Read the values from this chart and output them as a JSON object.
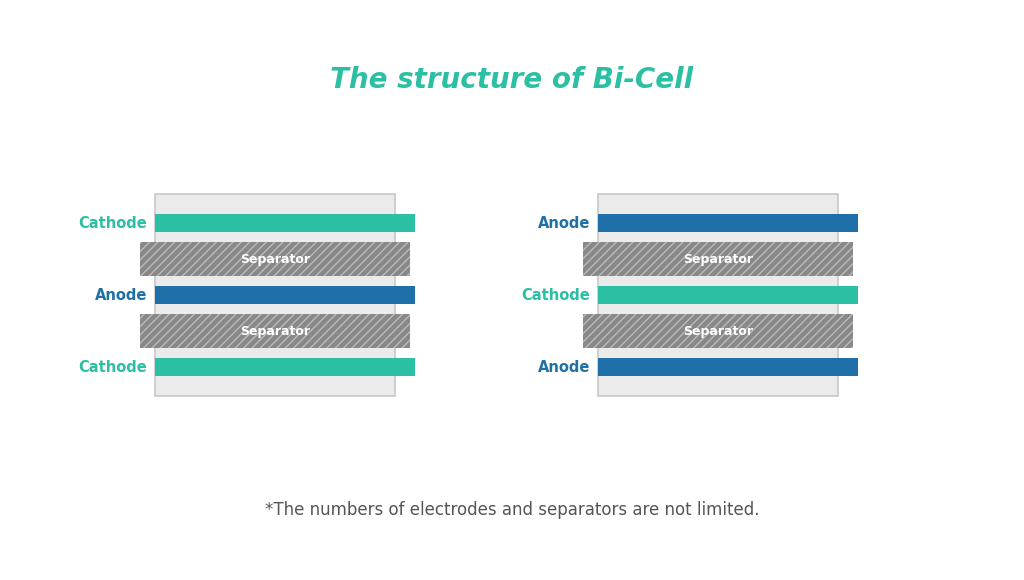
{
  "title": "The structure of Bi-Cell",
  "title_color": "#2bbfa4",
  "title_fontsize": 20,
  "footnote": "*The numbers of electrodes and separators are not limited.",
  "footnote_color": "#555555",
  "footnote_fontsize": 12,
  "bg_color": "#ffffff",
  "cathode_color": "#2bbfa4",
  "anode_color": "#1f6fa8",
  "separator_color": "#888888",
  "outer_box_color": "#c8c8c8",
  "outer_box_fill": "#ebebeb",
  "label_cathode_color": "#2bbfa4",
  "label_anode_color": "#1f6fa8",
  "left_layers": [
    "cathode",
    "separator",
    "anode",
    "separator",
    "cathode"
  ],
  "left_labels": [
    "Cathode",
    "Separator",
    "Anode",
    "Separator",
    "Cathode"
  ],
  "right_layers": [
    "anode",
    "separator",
    "cathode",
    "separator",
    "anode"
  ],
  "right_labels": [
    "Anode",
    "Separator",
    "Cathode",
    "Separator",
    "Anode"
  ]
}
